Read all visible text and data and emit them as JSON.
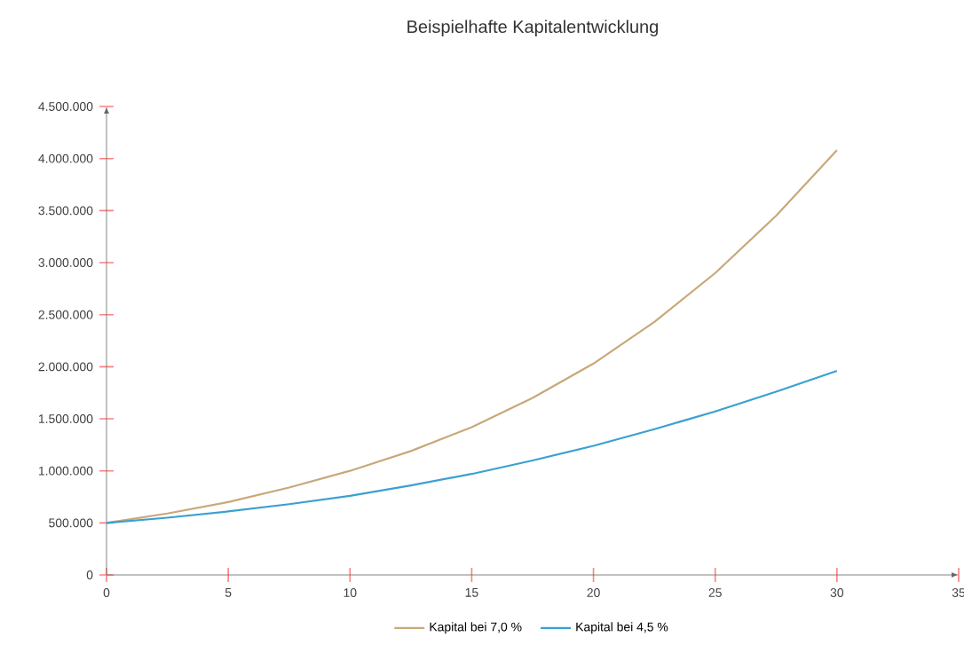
{
  "chart_data": {
    "type": "line",
    "title": "Beispielhafte Kapitalentwicklung",
    "x": [
      0,
      2.5,
      5,
      7.5,
      10,
      12.5,
      15,
      17.5,
      20,
      22.5,
      25,
      27.5,
      30
    ],
    "series": [
      {
        "name": "Kapital bei 7,0 %",
        "color": "#c8a87a",
        "values": [
          500000,
          590000,
          700000,
          840000,
          1000000,
          1190000,
          1420000,
          1700000,
          2030000,
          2430000,
          2900000,
          3450000,
          4080000
        ]
      },
      {
        "name": "Kapital bei 4,5 %",
        "color": "#3aa0d0",
        "values": [
          500000,
          550000,
          610000,
          680000,
          760000,
          860000,
          970000,
          1100000,
          1240000,
          1400000,
          1570000,
          1760000,
          1960000
        ]
      }
    ],
    "xlim": [
      0,
      35
    ],
    "xticks": [
      0,
      5,
      10,
      15,
      20,
      25,
      30,
      35
    ],
    "ylim": [
      0,
      4500000
    ],
    "yticks": [
      {
        "value": 0,
        "label": "0"
      },
      {
        "value": 500000,
        "label": "500.000"
      },
      {
        "value": 1000000,
        "label": "1.000.000"
      },
      {
        "value": 1500000,
        "label": "1.500.000"
      },
      {
        "value": 2000000,
        "label": "2.000.000"
      },
      {
        "value": 2500000,
        "label": "2.500.000"
      },
      {
        "value": 3000000,
        "label": "3.000.000"
      },
      {
        "value": 3500000,
        "label": "3.500.000"
      },
      {
        "value": 4000000,
        "label": "4.000.000"
      },
      {
        "value": 4500000,
        "label": "4.500.000"
      }
    ],
    "grid": false,
    "legend": "bottom",
    "marker": "none",
    "line_style": "solid"
  }
}
